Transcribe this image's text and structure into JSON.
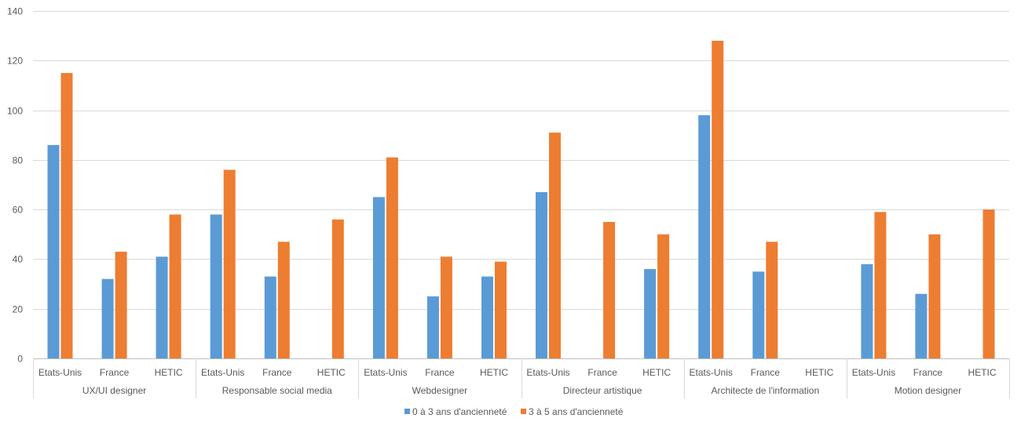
{
  "chart_data": {
    "type": "bar",
    "groups": [
      "UX/UI designer",
      "Responsable social media",
      "Webdesigner",
      "Directeur artistique",
      "Architecte de l'information",
      "Motion designer"
    ],
    "subcategories": [
      "Etats-Unis",
      "France",
      "HETIC"
    ],
    "series": [
      {
        "name": "0 à 3 ans d'ancienneté",
        "color": "#5B9BD5",
        "values": [
          86,
          32,
          41,
          58,
          33,
          null,
          65,
          25,
          33,
          67,
          null,
          36,
          98,
          35,
          null,
          38,
          26,
          null
        ]
      },
      {
        "name": "3 à 5 ans d'ancienneté",
        "color": "#ED7D31",
        "values": [
          115,
          43,
          58,
          76,
          47,
          56,
          81,
          41,
          39,
          91,
          55,
          50,
          128,
          47,
          null,
          59,
          50,
          60
        ]
      }
    ],
    "ylim": [
      0,
      140
    ],
    "yticks": [
      0,
      20,
      40,
      60,
      80,
      100,
      120,
      140
    ],
    "grid": true,
    "legend": "bottom"
  }
}
